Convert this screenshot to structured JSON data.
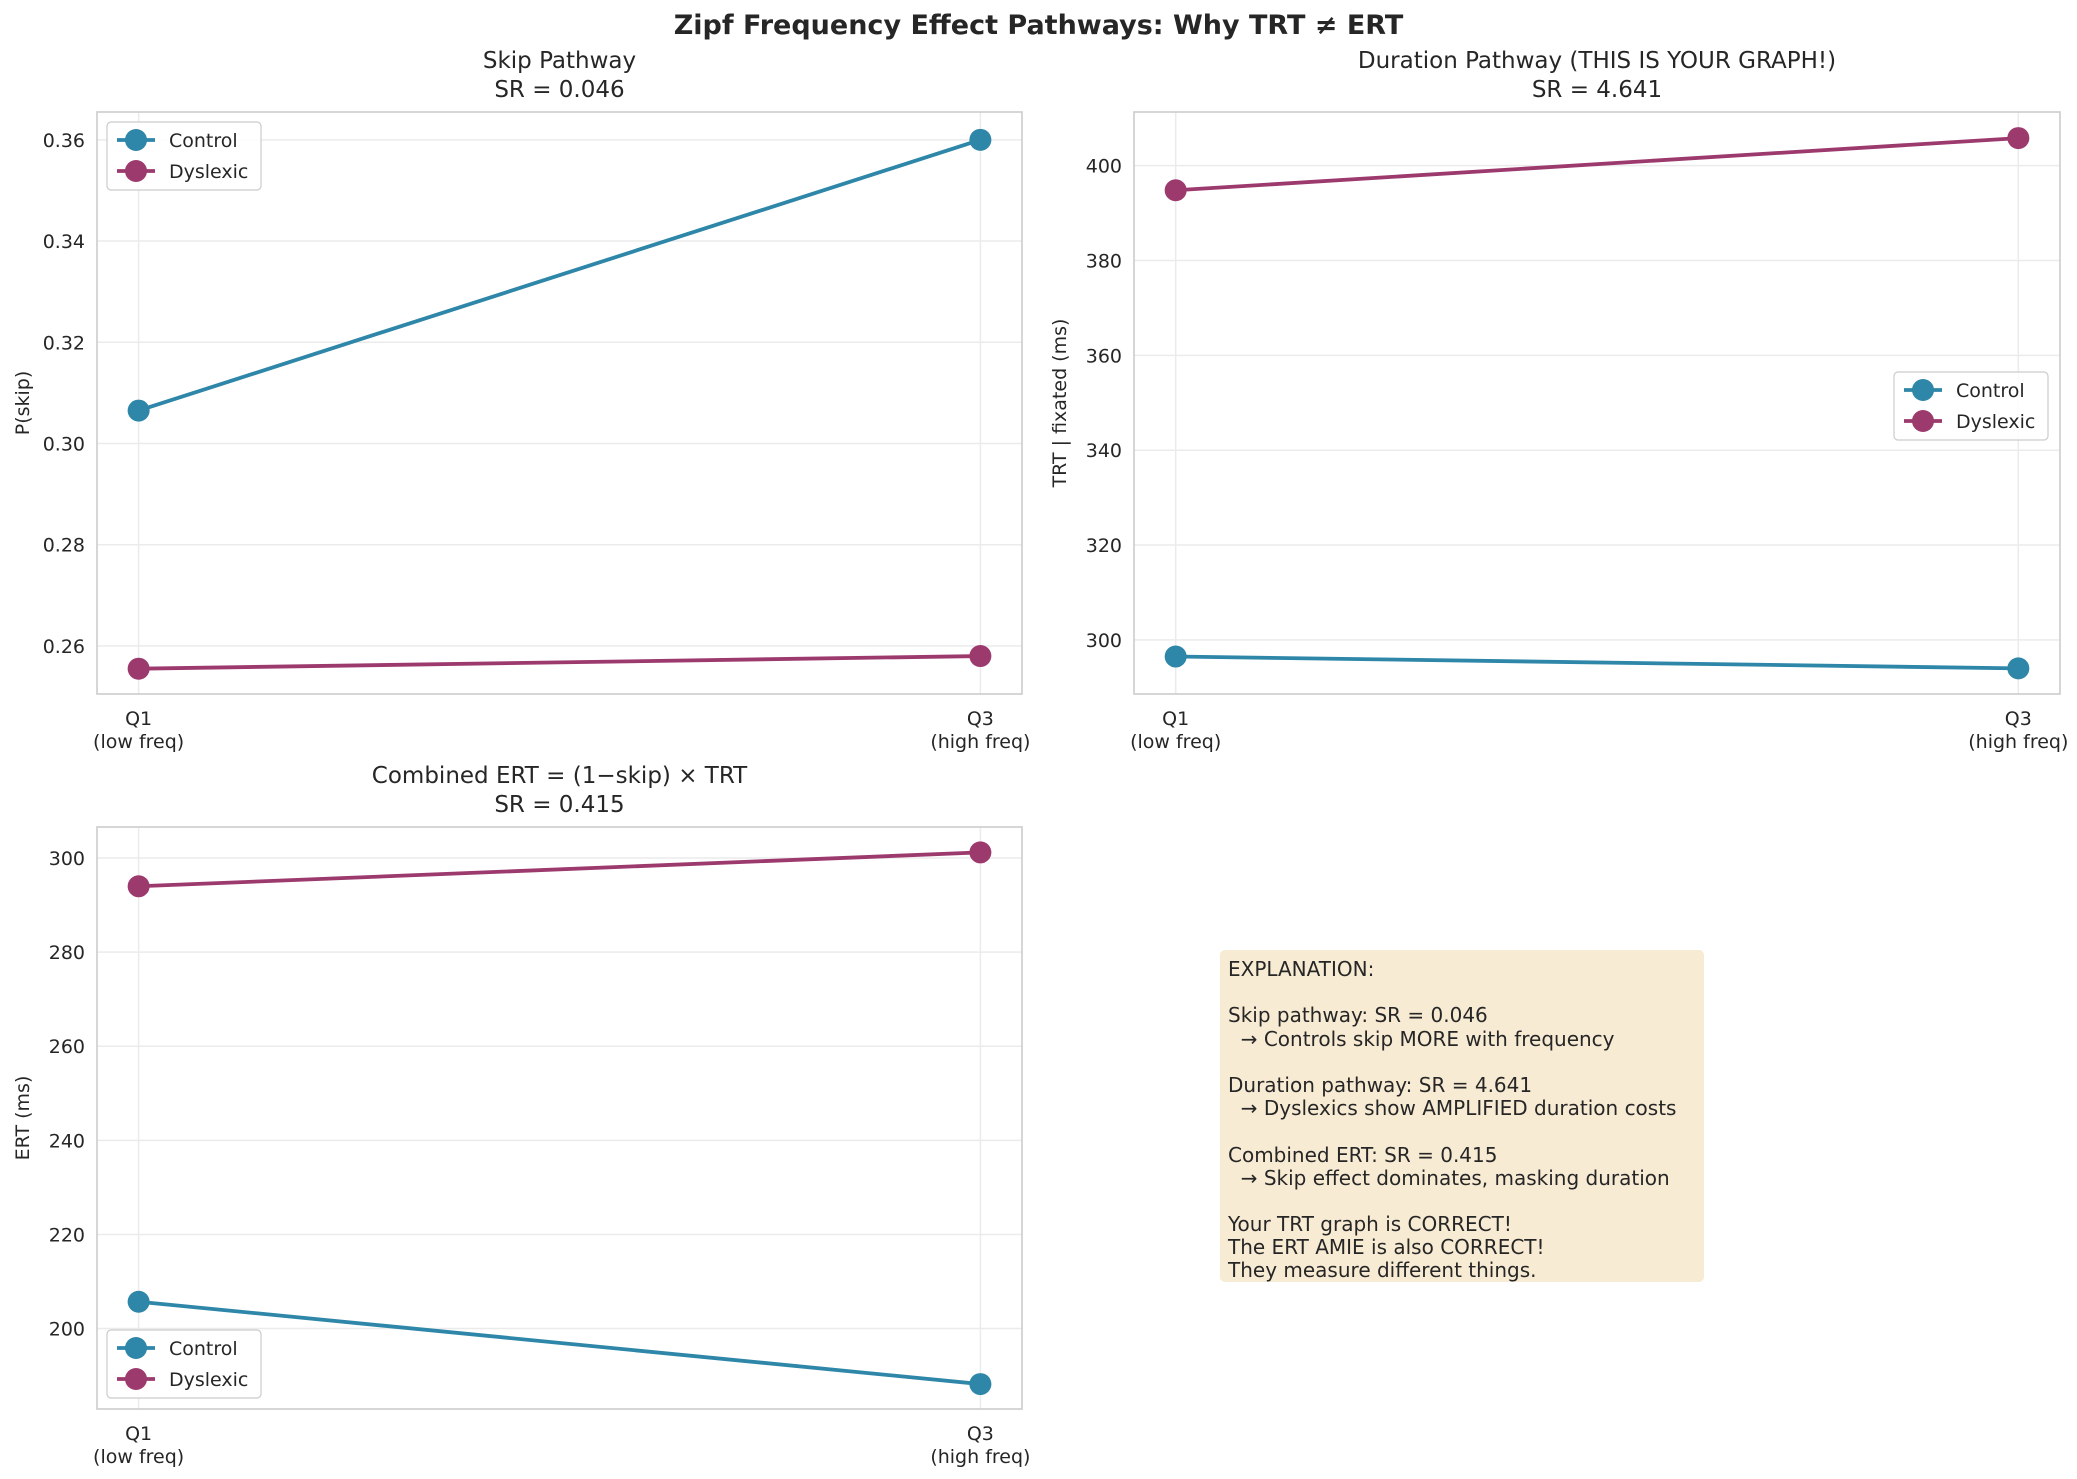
{
  "figure_title": "Zipf Frequency Effect Pathways: Why TRT ≠ ERT",
  "colors": {
    "control": "#2e86a8",
    "dyslexic": "#9c3a6e",
    "grid": "#ebebeb",
    "axes_edge": "#cccccc",
    "box": "#f8ebd4"
  },
  "chart_data": [
    {
      "type": "line",
      "title": "Skip Pathway",
      "subtitle": "SR = 0.046",
      "xlabel": "",
      "ylabel": "P(skip)",
      "categories": [
        "Q1\n(low freq)",
        "Q3\n(high freq)"
      ],
      "ylim": [
        0.2505,
        0.3655
      ],
      "yticks": [
        0.26,
        0.28,
        0.3,
        0.32,
        0.34,
        0.36
      ],
      "ytick_labels": [
        "0.26",
        "0.28",
        "0.30",
        "0.32",
        "0.34",
        "0.36"
      ],
      "legend": "upper-left",
      "grid": true,
      "series": [
        {
          "name": "Control",
          "values": [
            0.3065,
            0.36
          ]
        },
        {
          "name": "Dyslexic",
          "values": [
            0.2555,
            0.258
          ]
        }
      ]
    },
    {
      "type": "line",
      "title": "Duration Pathway (THIS IS YOUR GRAPH!)",
      "subtitle": "SR = 4.641",
      "xlabel": "",
      "ylabel": "TRT | fixated (ms)",
      "categories": [
        "Q1\n(low freq)",
        "Q3\n(high freq)"
      ],
      "ylim": [
        288.6,
        411.3
      ],
      "yticks": [
        300,
        320,
        340,
        360,
        380,
        400
      ],
      "ytick_labels": [
        "300",
        "320",
        "340",
        "360",
        "380",
        "400"
      ],
      "legend": "center-right",
      "grid": true,
      "series": [
        {
          "name": "Control",
          "values": [
            296.5,
            294.0
          ]
        },
        {
          "name": "Dyslexic",
          "values": [
            394.8,
            405.8
          ]
        }
      ]
    },
    {
      "type": "line",
      "title": "Combined ERT = (1−skip) × TRT",
      "subtitle": "SR = 0.415",
      "xlabel": "",
      "ylabel": "ERT (ms)",
      "categories": [
        "Q1\n(low freq)",
        "Q3\n(high freq)"
      ],
      "ylim": [
        182.9,
        306.6
      ],
      "yticks": [
        200,
        220,
        240,
        260,
        280,
        300
      ],
      "ytick_labels": [
        "200",
        "220",
        "240",
        "260",
        "280",
        "300"
      ],
      "legend": "lower-left",
      "grid": true,
      "series": [
        {
          "name": "Control",
          "values": [
            205.7,
            188.2
          ]
        },
        {
          "name": "Dyslexic",
          "values": [
            294.0,
            301.2
          ]
        }
      ]
    }
  ],
  "explanation": {
    "lines": [
      "EXPLANATION:",
      "",
      "Skip pathway: SR = 0.046",
      "  → Controls skip MORE with frequency",
      "",
      "Duration pathway: SR = 4.641",
      "  → Dyslexics show AMPLIFIED duration costs",
      "",
      "Combined ERT: SR = 0.415",
      "  → Skip effect dominates, masking duration",
      "",
      "Your TRT graph is CORRECT!",
      "The ERT AMIE is also CORRECT!",
      "They measure different things."
    ]
  }
}
